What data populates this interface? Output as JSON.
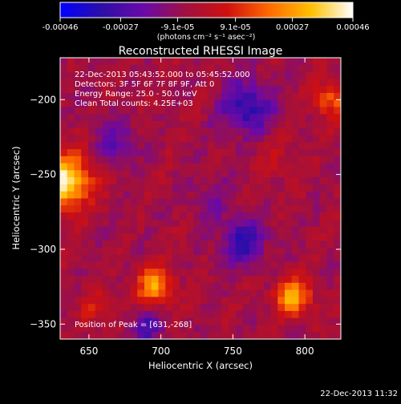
{
  "colorbar": {
    "ticks": [
      "-0.00046",
      "-0.00027",
      "-9.1e-05",
      "9.1e-05",
      "0.00027",
      "0.00046"
    ],
    "tick_values": [
      -0.00046,
      -0.00027,
      -9.1e-05,
      9.1e-05,
      0.00027,
      0.00046
    ],
    "range": [
      -0.00046,
      0.00046
    ],
    "units": "(photons cm⁻² s⁻¹ asec⁻²)",
    "stops": [
      "#0000ff",
      "#2d0ea8",
      "#6a0aa8",
      "#a01040",
      "#d01010",
      "#ff6a00",
      "#ffc000",
      "#ffffff"
    ]
  },
  "overlay": {
    "line1": "22-Dec-2013 05:43:52.000 to 05:45:52.000",
    "line2": "Detectors: 3F 5F 6F 7F 8F 9F, Att 0",
    "line3": "Energy Range: 25.0 - 50.0 keV",
    "line4": "Clean     Total counts: 4.25E+03",
    "peak": "Position of Peak = [631,-268]"
  },
  "footer": {
    "timestamp": "22-Dec-2013 11:32"
  },
  "chart_data": {
    "type": "heatmap",
    "title": "Reconstructed RHESSI Image",
    "xlabel": "Heliocentric X (arcsec)",
    "ylabel": "Heliocentric Y (arcsec)",
    "xlim": [
      630,
      825
    ],
    "ylim": [
      -360,
      -172
    ],
    "xticks": [
      650,
      700,
      750,
      800
    ],
    "yticks": [
      -200,
      -250,
      -300,
      -350
    ],
    "sources": [
      {
        "x": 633,
        "y": -255,
        "sigma": 13,
        "value": 0.00046
      },
      {
        "x": 696,
        "y": -325,
        "sigma": 9,
        "value": 0.00033
      },
      {
        "x": 792,
        "y": -332,
        "sigma": 9,
        "value": 0.00034
      },
      {
        "x": 818,
        "y": -200,
        "sigma": 9,
        "value": 0.00022
      },
      {
        "x": 655,
        "y": -340,
        "sigma": 8,
        "value": 0.00012
      },
      {
        "x": 780,
        "y": -240,
        "sigma": 10,
        "value": 8e-05
      }
    ],
    "negatives": [
      {
        "x": 760,
        "y": -205,
        "sigma": 12,
        "value": -0.00028
      },
      {
        "x": 757,
        "y": -295,
        "sigma": 11,
        "value": -0.00026
      },
      {
        "x": 668,
        "y": -228,
        "sigma": 10,
        "value": -0.00016
      },
      {
        "x": 690,
        "y": -352,
        "sigma": 8,
        "value": -0.0002
      },
      {
        "x": 735,
        "y": -265,
        "sigma": 10,
        "value": -0.0001
      }
    ],
    "background_level": -6e-05,
    "peak_position": [
      631,
      -268
    ]
  }
}
